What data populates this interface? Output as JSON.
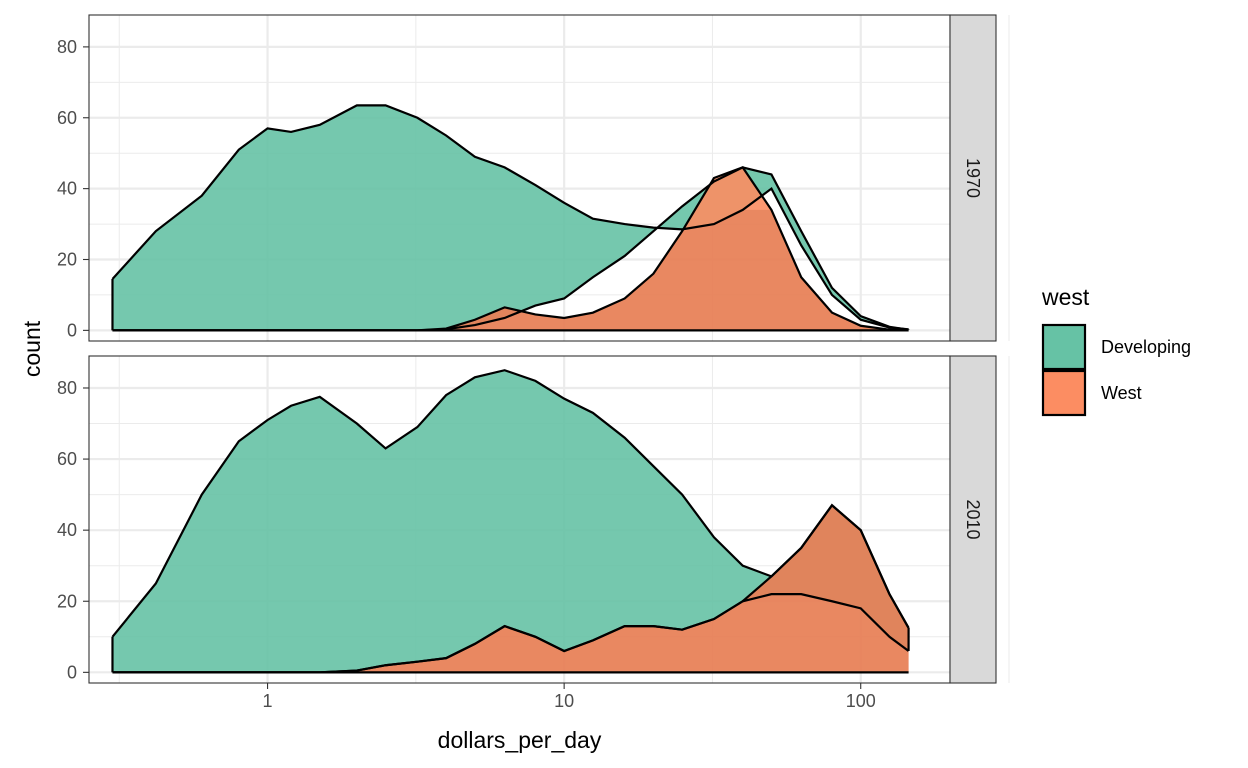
{
  "chart_data": {
    "type": "area",
    "subtype": "stacked density by group, faceted by year",
    "xlabel": "dollars_per_day",
    "ylabel": "count",
    "x_scale": "log10",
    "xlim": [
      0.25,
      200
    ],
    "ylim": [
      -3,
      89
    ],
    "x_ticks": [
      1,
      10,
      100
    ],
    "x_tick_labels": [
      "1",
      "10",
      "100"
    ],
    "y_ticks": [
      0,
      20,
      40,
      60,
      80
    ],
    "y_tick_labels": [
      "0",
      "20",
      "40",
      "60",
      "80"
    ],
    "grid": true,
    "legend": {
      "title": "west",
      "position": "right",
      "entries": [
        {
          "label": "Developing",
          "color": "#66C2A5"
        },
        {
          "label": "West",
          "color": "#FC8D62"
        }
      ]
    },
    "fill_alpha": 0.9,
    "panels": [
      {
        "strip": "1970",
        "series": [
          {
            "name": "Developing",
            "color": "#66C2A5",
            "x": [
              0.3,
              0.42,
              0.6,
              0.8,
              1.0,
              1.2,
              1.5,
              2.0,
              2.5,
              3.2,
              4.0,
              5.0,
              6.3,
              8.0,
              10.0,
              12.5,
              16.0,
              20.0,
              25.0,
              32.0,
              40.0,
              50.0,
              63.0,
              80.0,
              100.0,
              125.0,
              145.0
            ],
            "top": [
              14.5,
              28,
              38,
              51,
              57,
              56,
              58,
              63.5,
              63.5,
              60,
              55,
              49,
              46,
              41,
              36,
              31.5,
              30,
              29,
              28.5,
              30,
              34,
              40,
              24,
              10,
              3,
              0.8,
              0.3
            ],
            "west_part": [
              0,
              0,
              0,
              0,
              0,
              0,
              0,
              0,
              0,
              0,
              0.3,
              1.5,
              3.5,
              7,
              9,
              15,
              21,
              28,
              35,
              42,
              46,
              44,
              28,
              12,
              4,
              1,
              0.2
            ]
          },
          {
            "name": "West",
            "color": "#FC8D62",
            "x": [
              0.3,
              0.42,
              0.6,
              0.8,
              1.0,
              1.2,
              1.5,
              2.0,
              2.5,
              3.2,
              4.0,
              5.0,
              6.3,
              8.0,
              10.0,
              12.5,
              16.0,
              20.0,
              25.0,
              32.0,
              40.0,
              50.0,
              63.0,
              80.0,
              100.0,
              125.0,
              145.0
            ],
            "values": [
              0,
              0,
              0,
              0,
              0,
              0,
              0,
              0,
              0,
              0,
              0.5,
              3,
              6.5,
              4.5,
              3.5,
              5,
              9,
              16,
              28,
              43,
              46,
              34,
              15,
              5,
              1.3,
              0.2,
              0
            ]
          }
        ]
      },
      {
        "strip": "2010",
        "series": [
          {
            "name": "Developing",
            "color": "#66C2A5",
            "x": [
              0.3,
              0.42,
              0.6,
              0.8,
              1.0,
              1.2,
              1.5,
              2.0,
              2.5,
              3.2,
              4.0,
              5.0,
              6.3,
              8.0,
              10.0,
              12.5,
              16.0,
              20.0,
              25.0,
              32.0,
              40.0,
              50.0,
              63.0,
              80.0,
              100.0,
              125.0,
              145.0
            ],
            "top": [
              10,
              25,
              50,
              65,
              71,
              75,
              77.5,
              70,
              63,
              69,
              78,
              83,
              85,
              82,
              77,
              73,
              66,
              58,
              50,
              38,
              30,
              27,
              35,
              47,
              40,
              22,
              12.5
            ],
            "west_part": [
              0,
              0,
              0,
              0,
              0,
              0,
              0,
              0.5,
              2,
              3,
              4,
              8,
              13,
              10,
              6,
              9,
              13,
              13,
              12,
              15,
              20,
              22,
              22,
              20,
              18,
              10,
              6
            ]
          },
          {
            "name": "West",
            "color": "#FC8D62",
            "x": [
              0.3,
              0.42,
              0.6,
              0.8,
              1.0,
              1.2,
              1.5,
              2.0,
              2.5,
              3.2,
              4.0,
              5.0,
              6.3,
              8.0,
              10.0,
              12.5,
              16.0,
              20.0,
              25.0,
              32.0,
              40.0,
              50.0,
              63.0,
              80.0,
              100.0,
              125.0,
              145.0
            ],
            "values": [
              0,
              0,
              0,
              0,
              0,
              0,
              0,
              0.5,
              2,
              3,
              4,
              8,
              13,
              10,
              6,
              9,
              13,
              13,
              12,
              15,
              20,
              27,
              35,
              47,
              40,
              22,
              12.5
            ]
          }
        ]
      }
    ]
  }
}
